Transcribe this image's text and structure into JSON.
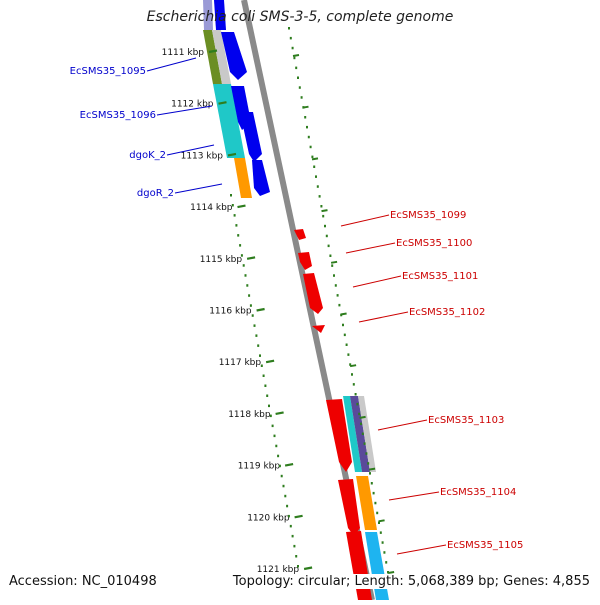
{
  "title": "Escherichia coli SMS-3-5, complete genome",
  "footer": {
    "accession": "Accession: NC_010498",
    "topology": "Topology: circular; Length: 5,068,389 bp; Genes: 4,855"
  },
  "ticks": [
    "1111 kbp",
    "1112 kbp",
    "1113 kbp",
    "1114 kbp",
    "1115 kbp",
    "1116 kbp",
    "1117 kbp",
    "1118 kbp",
    "1119 kbp",
    "1120 kbp",
    "1121 kbp"
  ],
  "left_genes": [
    "EcSMS35_1095",
    "EcSMS35_1096",
    "dgoK_2",
    "dgoR_2"
  ],
  "right_genes": [
    "EcSMS35_1099",
    "EcSMS35_1100",
    "EcSMS35_1101",
    "EcSMS35_1102",
    "EcSMS35_1103",
    "EcSMS35_1104",
    "EcSMS35_1105"
  ],
  "colors": {
    "left_label": "#0000cc",
    "right_label": "#cc0000",
    "forward_gene": "#0000ee",
    "reverse_gene": "#ee0000",
    "tick": "#2e7d1e",
    "backbone": "#8a8a8a",
    "olive": "#6b8e23",
    "cyan": "#1fc8c8",
    "orange": "#ff9900",
    "sky": "#1eb4f0",
    "purple": "#5a4a9a"
  }
}
